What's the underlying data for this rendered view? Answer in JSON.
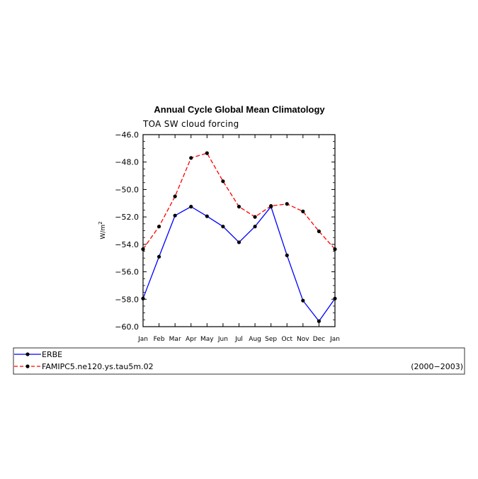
{
  "chart_data": {
    "type": "line",
    "title": "Annual Cycle Global Mean Climatology",
    "subtitle": "TOA SW cloud forcing",
    "xlabel": "",
    "ylabel": "W/m",
    "ylabel_superscript": "2",
    "categories": [
      "Jan",
      "Feb",
      "Mar",
      "Apr",
      "May",
      "Jun",
      "Jul",
      "Aug",
      "Sep",
      "Oct",
      "Nov",
      "Dec",
      "Jan"
    ],
    "ylim": [
      -60.0,
      -46.0
    ],
    "yticks": [
      -46.0,
      -48.0,
      -50.0,
      -52.0,
      -54.0,
      -56.0,
      -58.0,
      -60.0
    ],
    "ytick_labels": [
      "−46.0",
      "−48.0",
      "−50.0",
      "−52.0",
      "−54.0",
      "−56.0",
      "−58.0",
      "−60.0"
    ],
    "series": [
      {
        "name": "ERBE",
        "color": "#0000ff",
        "dash": "solid",
        "values": [
          -57.95,
          -54.9,
          -51.9,
          -51.25,
          -51.95,
          -52.7,
          -53.85,
          -52.7,
          -51.25,
          -54.8,
          -58.1,
          -59.6,
          -57.95
        ]
      },
      {
        "name": "FAMIPC5.ne120.ys.tau5m.02",
        "color": "#ff0000",
        "dash": "dashed",
        "values": [
          -54.35,
          -52.7,
          -50.5,
          -47.7,
          -47.35,
          -49.4,
          -51.25,
          -52.0,
          -51.2,
          -51.05,
          -51.6,
          -53.05,
          -54.35
        ]
      }
    ],
    "grid": false,
    "legend_position": "bottom",
    "legend_note": "(2000−2003)"
  }
}
